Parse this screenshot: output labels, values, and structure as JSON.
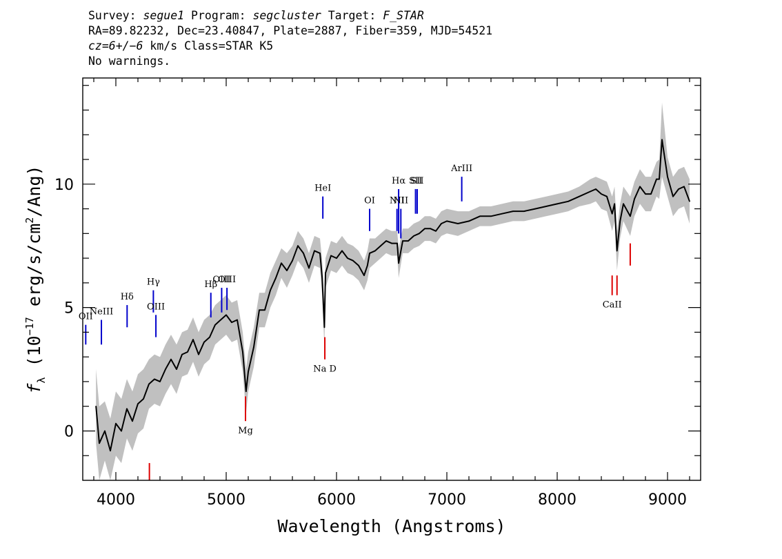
{
  "header": {
    "line1": {
      "survey_label": "Survey: ",
      "survey": "segue1",
      "program_label": " Program: ",
      "program": "segcluster",
      "target_label": " Target: ",
      "target": "F_STAR"
    },
    "line2": "RA=89.82232, Dec=23.40847, Plate=2887, Fiber=359, MJD=54521",
    "line3": {
      "cz": "cz=6+/−6",
      "rest": " km/s Class=STAR K5"
    },
    "line4": "No warnings."
  },
  "chart_data": {
    "type": "line",
    "title": "",
    "xlabel": "Wavelength (Angstroms)",
    "ylabel": "fλ (10⁻¹⁷ erg/s/cm²/Ang)",
    "xlim": [
      3700,
      9300
    ],
    "ylim": [
      -2,
      14.3
    ],
    "xticks": [
      4000,
      5000,
      6000,
      7000,
      8000,
      9000
    ],
    "yticks": [
      0,
      5,
      10
    ],
    "grid": false,
    "colors": {
      "flux": "#000000",
      "error_band": "#c0c0c0",
      "emission": "#0000cc",
      "absorption": "#dd0000"
    },
    "series": [
      {
        "name": "",
        "x": [
          3820,
          3850,
          3900,
          3950,
          4000,
          4050,
          4100,
          4150,
          4200,
          4250,
          4300,
          4350,
          4400,
          4450,
          4500,
          4550,
          4600,
          4650,
          4700,
          4750,
          4800,
          4850,
          4900,
          4950,
          5000,
          5050,
          5100,
          5150,
          5180,
          5200,
          5250,
          5300,
          5350,
          5400,
          5450,
          5500,
          5550,
          5600,
          5650,
          5700,
          5750,
          5800,
          5850,
          5870,
          5890,
          5900,
          5950,
          6000,
          6050,
          6100,
          6150,
          6200,
          6250,
          6280,
          6300,
          6350,
          6400,
          6450,
          6500,
          6550,
          6563,
          6600,
          6650,
          6700,
          6750,
          6800,
          6850,
          6900,
          6950,
          7000,
          7100,
          7200,
          7300,
          7400,
          7500,
          7600,
          7700,
          7800,
          7900,
          8000,
          8100,
          8200,
          8300,
          8350,
          8400,
          8450,
          8498,
          8520,
          8542,
          8570,
          8600,
          8662,
          8700,
          8750,
          8800,
          8850,
          8900,
          8925,
          8950,
          9000,
          9050,
          9100,
          9150,
          9200
        ],
        "values": [
          1.0,
          -0.5,
          0.0,
          -0.8,
          0.3,
          0.0,
          0.9,
          0.4,
          1.1,
          1.3,
          1.9,
          2.1,
          2.0,
          2.5,
          2.9,
          2.5,
          3.1,
          3.2,
          3.7,
          3.1,
          3.6,
          3.8,
          4.3,
          4.5,
          4.7,
          4.4,
          4.5,
          3.2,
          1.6,
          2.4,
          3.4,
          4.9,
          4.9,
          5.7,
          6.2,
          6.8,
          6.5,
          6.9,
          7.5,
          7.2,
          6.6,
          7.3,
          7.2,
          6.2,
          4.2,
          6.4,
          7.1,
          7.0,
          7.3,
          7.0,
          6.9,
          6.7,
          6.3,
          6.7,
          7.2,
          7.3,
          7.5,
          7.7,
          7.6,
          7.6,
          6.8,
          7.7,
          7.7,
          7.9,
          8.0,
          8.2,
          8.2,
          8.1,
          8.4,
          8.5,
          8.4,
          8.5,
          8.7,
          8.7,
          8.8,
          8.9,
          8.9,
          9.0,
          9.1,
          9.2,
          9.3,
          9.5,
          9.7,
          9.8,
          9.6,
          9.5,
          8.8,
          9.2,
          7.3,
          8.5,
          9.2,
          8.7,
          9.4,
          9.9,
          9.6,
          9.6,
          10.2,
          10.2,
          11.8,
          10.3,
          9.5,
          9.8,
          9.9,
          9.3
        ],
        "upper": [
          2.5,
          1.0,
          1.2,
          0.5,
          1.6,
          1.3,
          2.1,
          1.6,
          2.3,
          2.5,
          2.9,
          3.1,
          3.0,
          3.5,
          3.9,
          3.5,
          4.0,
          4.1,
          4.6,
          4.0,
          4.5,
          4.7,
          5.1,
          5.3,
          5.5,
          5.2,
          5.3,
          4.0,
          2.5,
          3.2,
          4.2,
          5.6,
          5.6,
          6.4,
          6.9,
          7.4,
          7.2,
          7.5,
          8.1,
          7.8,
          7.2,
          7.9,
          7.8,
          6.9,
          5.0,
          7.0,
          7.7,
          7.6,
          7.9,
          7.6,
          7.5,
          7.3,
          6.9,
          7.3,
          7.8,
          7.8,
          8.0,
          8.2,
          8.1,
          8.1,
          7.4,
          8.2,
          8.2,
          8.4,
          8.5,
          8.7,
          8.7,
          8.6,
          8.9,
          9.0,
          8.9,
          8.9,
          9.1,
          9.1,
          9.2,
          9.3,
          9.3,
          9.4,
          9.5,
          9.6,
          9.7,
          9.9,
          10.2,
          10.3,
          10.2,
          10.1,
          9.5,
          9.9,
          8.1,
          9.2,
          9.9,
          9.5,
          10.1,
          10.6,
          10.3,
          10.3,
          10.9,
          11.0,
          13.3,
          11.1,
          10.3,
          10.6,
          10.7,
          10.2
        ],
        "lower": [
          -0.5,
          -2.0,
          -1.2,
          -2.0,
          -1.0,
          -1.3,
          -0.3,
          -0.8,
          -0.1,
          0.1,
          0.9,
          1.1,
          1.0,
          1.5,
          1.9,
          1.5,
          2.2,
          2.3,
          2.8,
          2.2,
          2.7,
          2.9,
          3.5,
          3.7,
          3.9,
          3.6,
          3.7,
          2.4,
          0.7,
          1.6,
          2.6,
          4.2,
          4.2,
          5.0,
          5.5,
          6.2,
          5.8,
          6.3,
          6.9,
          6.6,
          6.0,
          6.7,
          6.6,
          5.5,
          3.4,
          5.8,
          6.5,
          6.4,
          6.7,
          6.4,
          6.3,
          6.1,
          5.7,
          6.1,
          6.6,
          6.8,
          7.0,
          7.2,
          7.1,
          7.1,
          6.2,
          7.2,
          7.2,
          7.4,
          7.5,
          7.7,
          7.7,
          7.6,
          7.9,
          8.0,
          7.9,
          8.1,
          8.3,
          8.3,
          8.4,
          8.5,
          8.5,
          8.6,
          8.7,
          8.8,
          8.9,
          9.1,
          9.2,
          9.3,
          9.0,
          8.9,
          8.1,
          8.5,
          6.5,
          7.8,
          8.5,
          7.9,
          8.7,
          9.2,
          8.9,
          8.9,
          9.5,
          9.4,
          10.3,
          9.5,
          8.7,
          9.0,
          9.1,
          8.4
        ]
      }
    ],
    "line_labels": [
      {
        "label": "OII",
        "wavelength": 3727,
        "type": "emission",
        "y_top": 4.3,
        "y_bottom": 3.5
      },
      {
        "label": "NeIII",
        "wavelength": 3869,
        "type": "emission",
        "y_top": 4.5,
        "y_bottom": 3.5
      },
      {
        "label": "Hδ",
        "wavelength": 4102,
        "type": "emission",
        "y_top": 5.1,
        "y_bottom": 4.2
      },
      {
        "label": "Hγ",
        "wavelength": 4340,
        "type": "emission",
        "y_top": 5.7,
        "y_bottom": 4.8
      },
      {
        "label": "OIII",
        "wavelength": 4363,
        "type": "emission",
        "y_top": 4.7,
        "y_bottom": 3.8
      },
      {
        "label": "Hβ",
        "wavelength": 4861,
        "type": "emission",
        "y_top": 5.6,
        "y_bottom": 4.6
      },
      {
        "label": "OIII",
        "wavelength": 4959,
        "type": "emission",
        "y_top": 5.8,
        "y_bottom": 4.8
      },
      {
        "label": "OIII",
        "wavelength": 5007,
        "type": "emission",
        "y_top": 5.8,
        "y_bottom": 4.9
      },
      {
        "label": "HeI",
        "wavelength": 5876,
        "type": "emission",
        "y_top": 9.5,
        "y_bottom": 8.6
      },
      {
        "label": "OI",
        "wavelength": 6300,
        "type": "emission",
        "y_top": 9.0,
        "y_bottom": 8.1
      },
      {
        "label": "NII",
        "wavelength": 6548,
        "type": "emission",
        "y_top": 9.0,
        "y_bottom": 8.1
      },
      {
        "label": "Hα",
        "wavelength": 6563,
        "type": "emission",
        "y_top": 9.8,
        "y_bottom": 8.0
      },
      {
        "label": "NII",
        "wavelength": 6583,
        "type": "emission",
        "y_top": 9.0,
        "y_bottom": 7.8
      },
      {
        "label": "SII",
        "wavelength": 6716,
        "type": "emission",
        "y_top": 9.8,
        "y_bottom": 8.8
      },
      {
        "label": "SII",
        "wavelength": 6731,
        "type": "emission",
        "y_top": 9.8,
        "y_bottom": 8.8
      },
      {
        "label": "ArIII",
        "wavelength": 7135,
        "type": "emission",
        "y_top": 10.3,
        "y_bottom": 9.3
      },
      {
        "label": "",
        "wavelength": 4304,
        "type": "absorption",
        "y_top": -1.3,
        "y_bottom": -2.0
      },
      {
        "label": "Mg",
        "wavelength": 5175,
        "type": "absorption",
        "y_top": 1.4,
        "y_bottom": 0.4
      },
      {
        "label": "Na D",
        "wavelength": 5894,
        "type": "absorption",
        "y_top": 3.8,
        "y_bottom": 2.9
      },
      {
        "label": "CaII",
        "wavelength": 8498,
        "type": "absorption",
        "y_top": 6.3,
        "y_bottom": 5.5
      },
      {
        "label": "",
        "wavelength": 8542,
        "type": "absorption",
        "y_top": 6.3,
        "y_bottom": 5.5
      },
      {
        "label": "",
        "wavelength": 8662,
        "type": "absorption",
        "y_top": 7.6,
        "y_bottom": 6.7
      }
    ]
  }
}
